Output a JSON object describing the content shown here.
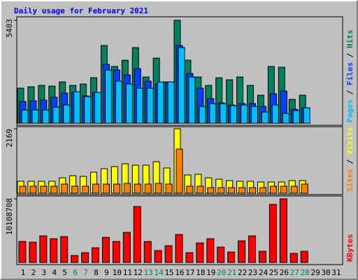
{
  "chart_data": [
    {
      "type": "bar",
      "title": "Daily usage for February 2021",
      "ylim": [
        0,
        5403
      ],
      "yticks": [
        5403
      ],
      "legend_separator": " / ",
      "series": [
        {
          "name": "Hits",
          "color": "#00805c",
          "values": [
            1838,
            1911,
            1985,
            1948,
            2169,
            1985,
            2058,
            2389,
            4080,
            2977,
            3308,
            3970,
            2426,
            3419,
            2169,
            5403,
            3308,
            2426,
            1985,
            2389,
            2279,
            2426,
            1985,
            1470,
            2977,
            2941,
            1250,
            1470,
            null,
            null,
            null
          ]
        },
        {
          "name": "Files",
          "color": "#0040ff",
          "values": [
            1140,
            1176,
            1213,
            1360,
            1581,
            1617,
            1434,
            1617,
            3088,
            2794,
            2536,
            2867,
            2206,
            2058,
            2169,
            4080,
            2610,
            1838,
            1287,
            1066,
            956,
            1029,
            1029,
            882,
            1544,
            1691,
            735,
            809,
            null,
            null,
            null
          ]
        },
        {
          "name": "Pages",
          "color": "#00c0ff",
          "values": [
            698,
            698,
            698,
            845,
            956,
            1654,
            1397,
            1617,
            2794,
            2206,
            2058,
            1838,
            1838,
            2169,
            2169,
            3970,
            2426,
            882,
            1029,
            1029,
            919,
            956,
            882,
            588,
            956,
            515,
            662,
            809,
            null,
            null,
            null
          ]
        }
      ]
    },
    {
      "type": "bar",
      "ylim": [
        0,
        2169
      ],
      "yticks": [
        2169
      ],
      "legend_separator": " / ",
      "series": [
        {
          "name": "Visits",
          "color": "#ffff00",
          "values": [
            401,
            401,
            401,
            401,
            519,
            590,
            566,
            707,
            825,
            896,
            990,
            943,
            943,
            1061,
            849,
            2169,
            613,
            637,
            519,
            472,
            424,
            401,
            401,
            377,
            377,
            377,
            424,
            424,
            null,
            null,
            null
          ]
        },
        {
          "name": "Sites",
          "color": "#ff8000",
          "values": [
            236,
            236,
            236,
            236,
            307,
            236,
            236,
            307,
            307,
            307,
            330,
            307,
            307,
            330,
            307,
            1486,
            236,
            236,
            189,
            189,
            189,
            189,
            189,
            189,
            236,
            236,
            236,
            307,
            null,
            null,
            null
          ]
        }
      ]
    },
    {
      "type": "bar",
      "ylim": [
        0,
        10108708
      ],
      "yticks": [
        10108708
      ],
      "series": [
        {
          "name": "KBytes",
          "color": "#ff0000",
          "values": [
            3332550,
            3221465,
            4221230,
            3776890,
            4110145,
            1110850,
            1555190,
            2332785,
            3999060,
            3332550,
            4776655,
            8886800,
            3332550,
            1888445,
            2666040,
            4443400,
            1555190,
            3110380,
            3776890,
            2443870,
            1666275,
            3443635,
            4221230,
            1777360,
            9220055,
            10108708,
            1444105,
            1777360,
            null,
            null,
            null
          ]
        }
      ],
      "categories": [
        "1",
        "2",
        "3",
        "4",
        "5",
        "6",
        "7",
        "8",
        "9",
        "10",
        "11",
        "12",
        "13",
        "14",
        "15",
        "16",
        "17",
        "18",
        "19",
        "20",
        "21",
        "22",
        "23",
        "24",
        "25",
        "26",
        "27",
        "28",
        "29",
        "30",
        "31"
      ],
      "category_colors": [
        "#000000",
        "#000000",
        "#000000",
        "#000000",
        "#000000",
        "#00805c",
        "#00805c",
        "#000000",
        "#000000",
        "#000000",
        "#000000",
        "#000000",
        "#00805c",
        "#00805c",
        "#000000",
        "#000000",
        "#000000",
        "#000000",
        "#000000",
        "#00805c",
        "#00805c",
        "#000000",
        "#000000",
        "#000000",
        "#000000",
        "#000000",
        "#00805c",
        "#00805c",
        "#000000",
        "#000000",
        "#000000"
      ]
    }
  ]
}
